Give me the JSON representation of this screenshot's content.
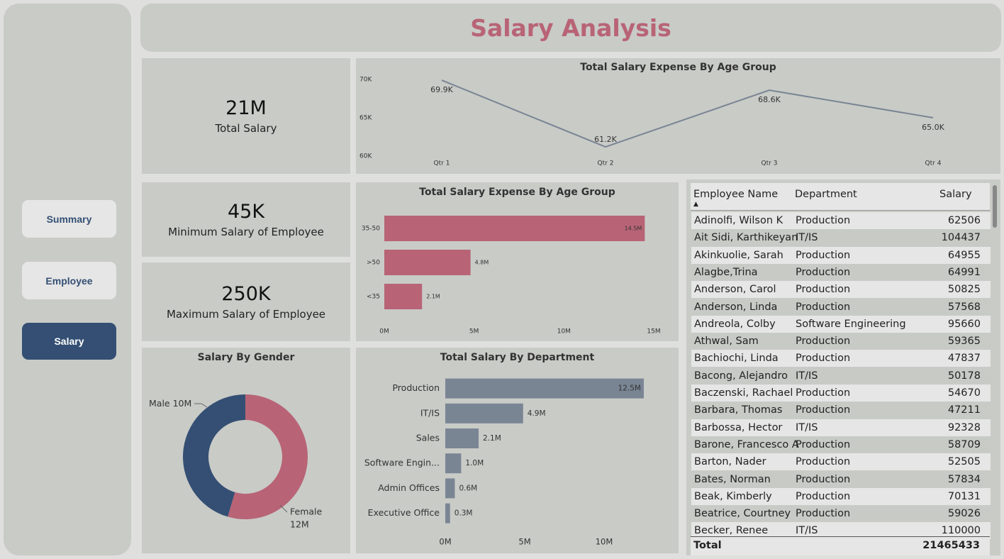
{
  "title": "Salary Analysis",
  "nav": [
    {
      "label": "Summary",
      "active": false
    },
    {
      "label": "Employee",
      "active": false
    },
    {
      "label": "Salary",
      "active": true
    }
  ],
  "kpis": [
    {
      "value": "21M",
      "label": "Total Salary"
    },
    {
      "value": "45K",
      "label": "Minimum Salary of Employee"
    },
    {
      "value": "250K",
      "label": "Maximum Salary of Employee"
    }
  ],
  "chart_data": [
    {
      "type": "line",
      "title": "Total Salary Expense By Age Group",
      "categories": [
        "Qtr 1",
        "Qtr 2",
        "Qtr 3",
        "Qtr 4"
      ],
      "values": [
        69900,
        61200,
        68600,
        65000
      ],
      "value_labels": [
        "69.9K",
        "61.2K",
        "68.6K",
        "65.0K"
      ],
      "color": "#7a8594",
      "ylim": [
        60000,
        70000
      ],
      "yticks": [
        {
          "value": 60000,
          "label": "60K"
        },
        {
          "value": 65000,
          "label": "65K"
        },
        {
          "value": 70000,
          "label": "70K"
        }
      ]
    },
    {
      "type": "bar",
      "title": "Total Salary Expense By Age Group",
      "categories": [
        "35-50",
        ">50",
        "<35"
      ],
      "values": [
        14500000,
        4800000,
        2100000
      ],
      "value_labels": [
        "14.5M",
        "4.8M",
        "2.1M"
      ],
      "color": "#b86476",
      "xlim": [
        0,
        15000000
      ],
      "xticks": [
        {
          "value": 0,
          "label": "0M"
        },
        {
          "value": 5000000,
          "label": "5M"
        },
        {
          "value": 10000000,
          "label": "10M"
        },
        {
          "value": 15000000,
          "label": "15M"
        }
      ]
    },
    {
      "type": "donut",
      "title": "Salary By Gender",
      "categories": [
        "Male",
        "Female"
      ],
      "values": [
        10000000,
        12000000
      ],
      "value_labels": [
        "10M",
        "12M"
      ],
      "colors": [
        "#344f73",
        "#b86476"
      ]
    },
    {
      "type": "bar",
      "title": "Total Salary By Department",
      "categories": [
        "Production",
        "IT/IS",
        "Sales",
        "Software Engin...",
        "Admin Offices",
        "Executive Office"
      ],
      "values": [
        12500000,
        4900000,
        2100000,
        1000000,
        600000,
        300000
      ],
      "value_labels": [
        "12.5M",
        "4.9M",
        "2.1M",
        "1.0M",
        "0.6M",
        "0.3M"
      ],
      "color": "#7a8594",
      "xlim": [
        0,
        14000000
      ],
      "xticks": [
        {
          "value": 0,
          "label": "0M"
        },
        {
          "value": 5000000,
          "label": "5M"
        },
        {
          "value": 10000000,
          "label": "10M"
        }
      ]
    }
  ],
  "table": {
    "columns": [
      "Employee Name",
      "Department",
      "Salary"
    ],
    "rows": [
      [
        "Adinolfi, Wilson K",
        "Production",
        62506
      ],
      [
        "Ait Sidi, Karthikeyan",
        "IT/IS",
        104437
      ],
      [
        "Akinkuolie, Sarah",
        "Production",
        64955
      ],
      [
        "Alagbe,Trina",
        "Production",
        64991
      ],
      [
        "Anderson, Carol",
        "Production",
        50825
      ],
      [
        "Anderson, Linda",
        "Production",
        57568
      ],
      [
        "Andreola, Colby",
        "Software Engineering",
        95660
      ],
      [
        "Athwal, Sam",
        "Production",
        59365
      ],
      [
        "Bachiochi, Linda",
        "Production",
        47837
      ],
      [
        "Bacong, Alejandro",
        "IT/IS",
        50178
      ],
      [
        "Baczenski, Rachael",
        "Production",
        54670
      ],
      [
        "Barbara, Thomas",
        "Production",
        47211
      ],
      [
        "Barbossa, Hector",
        "IT/IS",
        92328
      ],
      [
        "Barone, Francesco A",
        "Production",
        58709
      ],
      [
        "Barton, Nader",
        "Production",
        52505
      ],
      [
        "Bates, Norman",
        "Production",
        57834
      ],
      [
        "Beak, Kimberly",
        "Production",
        70131
      ],
      [
        "Beatrice, Courtney",
        "Production",
        59026
      ],
      [
        "Becker, Renee",
        "IT/IS",
        110000
      ]
    ],
    "total": {
      "label": "Total",
      "value": 21465433
    }
  }
}
